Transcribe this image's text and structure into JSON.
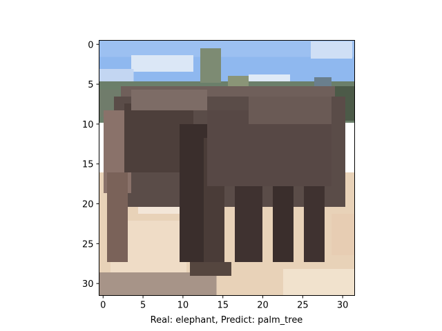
{
  "figure": {
    "image_subject": "pixelated photo of an elephant standing on sandy ground with blue sky and trees behind",
    "xlabel": "Real: elephant, Predict: palm_tree",
    "x_ticks": [
      "0",
      "5",
      "10",
      "15",
      "20",
      "25",
      "30"
    ],
    "y_ticks": [
      "0",
      "5",
      "10",
      "15",
      "20",
      "25",
      "30"
    ],
    "x_tick_values": [
      0,
      5,
      10,
      15,
      20,
      25,
      30
    ],
    "y_tick_values": [
      0,
      5,
      10,
      15,
      20,
      25,
      30
    ],
    "image_grid": [
      32,
      32
    ],
    "colors": {
      "sky": "#8fb8ef",
      "sky_light": "#c9dcf5",
      "trees": "#6b7f6a",
      "elephant": "#5a4c48",
      "elephant_dark": "#3a2e2c",
      "ground": "#e8d2b8",
      "ground_light": "#f1e2cd"
    }
  }
}
